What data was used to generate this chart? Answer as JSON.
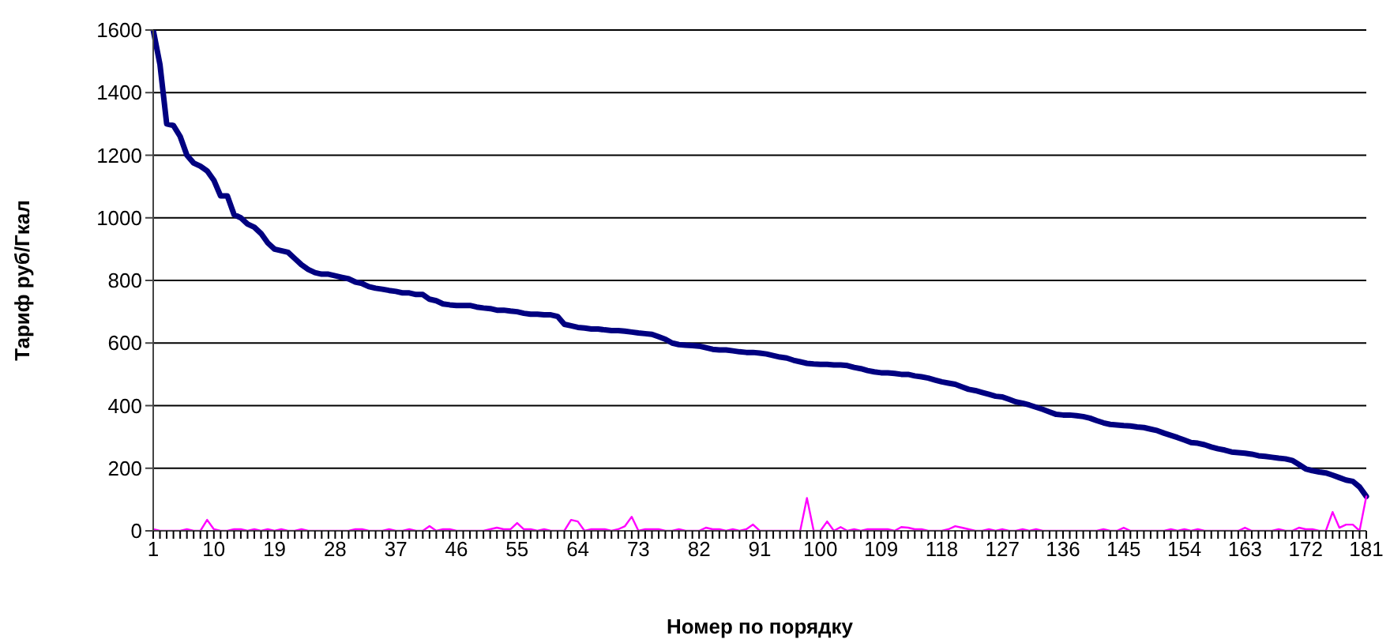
{
  "chart_data": {
    "type": "line",
    "xlabel": "Номер по порядку",
    "ylabel": "Тариф руб/Гкал",
    "categories": [
      "1",
      null,
      null,
      null,
      null,
      null,
      null,
      null,
      null,
      "10",
      null,
      null,
      null,
      null,
      null,
      null,
      null,
      null,
      "19",
      null,
      null,
      null,
      null,
      null,
      null,
      null,
      null,
      "28",
      null,
      null,
      null,
      null,
      null,
      null,
      null,
      null,
      "37",
      null,
      null,
      null,
      null,
      null,
      null,
      null,
      null,
      "46",
      null,
      null,
      null,
      null,
      null,
      null,
      null,
      null,
      "55",
      null,
      null,
      null,
      null,
      null,
      null,
      null,
      null,
      "64",
      null,
      null,
      null,
      null,
      null,
      null,
      null,
      null,
      "73",
      null,
      null,
      null,
      null,
      null,
      null,
      null,
      null,
      "82",
      null,
      null,
      null,
      null,
      null,
      null,
      null,
      null,
      "91",
      null,
      null,
      null,
      null,
      null,
      null,
      null,
      null,
      "100",
      null,
      null,
      null,
      null,
      null,
      null,
      null,
      null,
      "109",
      null,
      null,
      null,
      null,
      null,
      null,
      null,
      null,
      "118",
      null,
      null,
      null,
      null,
      null,
      null,
      null,
      null,
      "127",
      null,
      null,
      null,
      null,
      null,
      null,
      null,
      null,
      "136",
      null,
      null,
      null,
      null,
      null,
      null,
      null,
      null,
      "145",
      null,
      null,
      null,
      null,
      null,
      null,
      null,
      null,
      "154",
      null,
      null,
      null,
      null,
      null,
      null,
      null,
      null,
      "163",
      null,
      null,
      null,
      null,
      null,
      null,
      null,
      null,
      "172",
      null,
      null,
      null,
      null,
      null,
      null,
      null,
      null,
      "181"
    ],
    "series": [
      {
        "color": "#000080",
        "values": [
          1600,
          1490,
          1300,
          1295,
          1260,
          1200,
          1175,
          1165,
          1150,
          1120,
          1070,
          1070,
          1010,
          1000,
          980,
          970,
          950,
          920,
          900,
          895,
          890,
          870,
          850,
          835,
          825,
          820,
          820,
          815,
          810,
          805,
          795,
          790,
          780,
          775,
          772,
          768,
          765,
          760,
          760,
          755,
          755,
          740,
          735,
          725,
          722,
          720,
          720,
          720,
          715,
          712,
          710,
          705,
          705,
          702,
          700,
          695,
          692,
          692,
          690,
          690,
          685,
          660,
          655,
          650,
          648,
          645,
          645,
          642,
          640,
          640,
          638,
          635,
          632,
          630,
          628,
          620,
          612,
          600,
          595,
          593,
          592,
          590,
          585,
          580,
          578,
          578,
          575,
          572,
          570,
          570,
          568,
          565,
          560,
          555,
          552,
          545,
          540,
          535,
          533,
          532,
          532,
          530,
          530,
          528,
          522,
          518,
          512,
          508,
          505,
          505,
          503,
          500,
          500,
          495,
          492,
          488,
          482,
          476,
          472,
          468,
          460,
          452,
          448,
          442,
          436,
          430,
          428,
          420,
          412,
          408,
          402,
          395,
          388,
          380,
          372,
          370,
          370,
          368,
          365,
          360,
          352,
          345,
          340,
          338,
          336,
          335,
          332,
          330,
          325,
          320,
          312,
          305,
          298,
          290,
          282,
          280,
          275,
          268,
          262,
          258,
          252,
          250,
          248,
          245,
          240,
          238,
          235,
          232,
          230,
          225,
          212,
          198,
          192,
          188,
          185,
          178,
          170,
          162,
          158,
          140,
          110
        ]
      },
      {
        "color": "#ff00ff",
        "values": [
          5,
          0,
          0,
          0,
          0,
          5,
          0,
          0,
          35,
          5,
          0,
          0,
          5,
          5,
          0,
          5,
          0,
          5,
          0,
          5,
          0,
          0,
          5,
          0,
          0,
          0,
          0,
          0,
          0,
          0,
          5,
          5,
          0,
          0,
          0,
          5,
          0,
          0,
          5,
          0,
          0,
          15,
          0,
          5,
          5,
          0,
          0,
          0,
          0,
          0,
          5,
          10,
          5,
          5,
          25,
          5,
          5,
          0,
          5,
          0,
          0,
          0,
          35,
          30,
          0,
          5,
          5,
          5,
          0,
          5,
          15,
          45,
          0,
          5,
          5,
          5,
          0,
          0,
          5,
          0,
          0,
          0,
          10,
          5,
          5,
          0,
          5,
          0,
          5,
          20,
          0,
          0,
          0,
          0,
          0,
          0,
          0,
          105,
          0,
          0,
          30,
          0,
          12,
          0,
          5,
          0,
          5,
          5,
          5,
          5,
          0,
          12,
          10,
          5,
          5,
          0,
          0,
          0,
          5,
          15,
          10,
          5,
          0,
          0,
          5,
          0,
          5,
          0,
          0,
          5,
          0,
          5,
          0,
          0,
          0,
          0,
          0,
          0,
          0,
          0,
          0,
          5,
          0,
          0,
          10,
          0,
          0,
          0,
          0,
          0,
          0,
          5,
          0,
          5,
          0,
          5,
          0,
          0,
          0,
          0,
          0,
          0,
          10,
          0,
          0,
          0,
          0,
          5,
          0,
          0,
          10,
          5,
          5,
          0,
          0,
          60,
          10,
          20,
          20,
          0,
          110
        ]
      }
    ],
    "ylim": [
      0,
      1600
    ],
    "yticks": [
      0,
      200,
      400,
      600,
      800,
      1000,
      1200,
      1400,
      1600
    ],
    "grid": "y",
    "line_style": "solid",
    "marker": "none"
  }
}
